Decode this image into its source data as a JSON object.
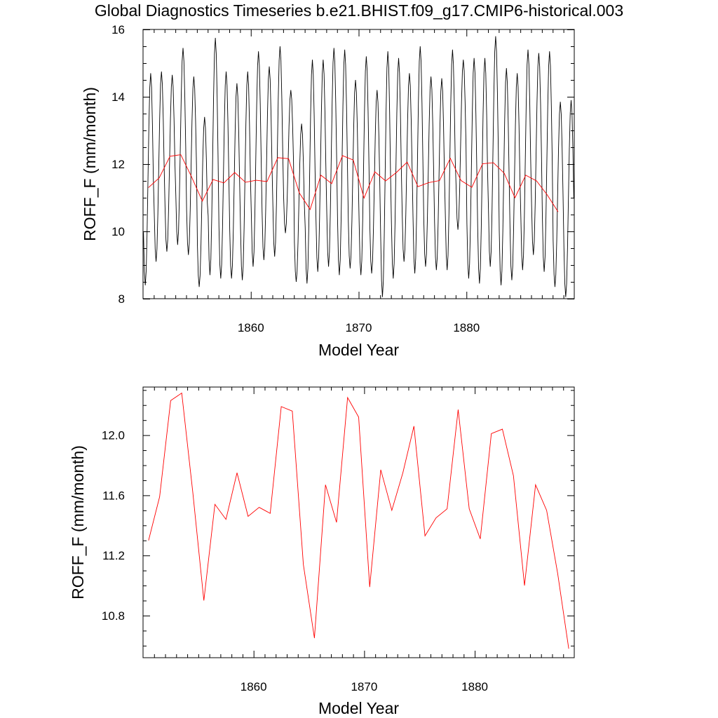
{
  "page_title": "Global Diagnostics Timeseries b.e21.BHIST.f09_g17.CMIP6-historical.003",
  "colors": {
    "monthly": "#000000",
    "annual": "#ff0000",
    "axis": "#000000"
  },
  "chart_data": [
    {
      "type": "line",
      "ylabel": "ROFF_F (mm/month)",
      "xlabel": "Model Year",
      "xlim": [
        1850,
        1890
      ],
      "ylim": [
        8,
        16
      ],
      "xticks": [
        1860,
        1870,
        1880
      ],
      "xtick_labels": [
        "1860",
        "1870",
        "1880"
      ],
      "yticks": [
        8,
        10,
        12,
        14,
        16
      ],
      "ytick_labels": [
        "8",
        "10",
        "12",
        "14",
        "16"
      ],
      "series": [
        {
          "name": "monthly",
          "color": "#000000",
          "seasonal": {
            "start_year": 1850,
            "n_months": 480,
            "min_month": 2,
            "max_month": 8
          },
          "annual_max": [
            14.7,
            14.75,
            14.65,
            15.45,
            14.6,
            13.4,
            15.75,
            14.75,
            14.4,
            14.75,
            15.35,
            14.9,
            15.5,
            14.2,
            13.2,
            15.1,
            15.1,
            15.45,
            15.4,
            14.5,
            15.2,
            14.2,
            15.35,
            15.15,
            14.7,
            15.5,
            14.6,
            14.55,
            15.4,
            15.1,
            15.15,
            15.15,
            15.8,
            14.85,
            14.7,
            15.4,
            15.3,
            15.35,
            13.85,
            13.9
          ],
          "annual_min": [
            8.4,
            9.1,
            9.4,
            9.6,
            9.3,
            8.35,
            8.7,
            8.6,
            8.6,
            8.55,
            8.95,
            9.15,
            9.25,
            9.95,
            8.5,
            8.45,
            8.8,
            8.95,
            8.7,
            8.9,
            8.7,
            8.75,
            8.05,
            8.6,
            9.1,
            8.75,
            8.95,
            8.85,
            8.85,
            10.05,
            8.6,
            8.45,
            8.95,
            8.4,
            8.55,
            8.85,
            9.3,
            8.8,
            8.35,
            8.05
          ]
        },
        {
          "name": "annual mean",
          "color": "#ff0000",
          "x": [
            1850.5,
            1851.5,
            1852.5,
            1853.5,
            1854.5,
            1855.5,
            1856.5,
            1857.5,
            1858.5,
            1859.5,
            1860.5,
            1861.5,
            1862.5,
            1863.5,
            1864.5,
            1865.5,
            1866.5,
            1867.5,
            1868.5,
            1869.5,
            1870.5,
            1871.5,
            1872.5,
            1873.5,
            1874.5,
            1875.5,
            1876.5,
            1877.5,
            1878.5,
            1879.5,
            1880.5,
            1881.5,
            1882.5,
            1883.5,
            1884.5,
            1885.5,
            1886.5,
            1887.5,
            1888.5
          ],
          "values": [
            11.3,
            11.59,
            12.23,
            12.28,
            11.62,
            10.9,
            11.54,
            11.44,
            11.75,
            11.46,
            11.52,
            11.48,
            12.19,
            12.16,
            11.14,
            10.65,
            11.67,
            11.42,
            12.25,
            12.12,
            10.99,
            11.77,
            11.5,
            11.75,
            12.06,
            11.33,
            11.45,
            11.51,
            12.17,
            11.51,
            11.31,
            12.01,
            12.04,
            11.73,
            11.0,
            11.67,
            11.5,
            11.08,
            10.58
          ]
        }
      ]
    },
    {
      "type": "line",
      "ylabel": "ROFF_F (mm/month)",
      "xlabel": "Model Year",
      "xlim": [
        1850,
        1889
      ],
      "ylim": [
        10.52,
        12.32
      ],
      "xticks": [
        1860,
        1870,
        1880
      ],
      "xtick_labels": [
        "1860",
        "1870",
        "1880"
      ],
      "yticks": [
        10.8,
        11.2,
        11.6,
        12.0
      ],
      "ytick_labels": [
        "10.8",
        "11.2",
        "11.6",
        "12.0"
      ],
      "series": [
        {
          "name": "annual mean",
          "color": "#ff0000",
          "x": [
            1850.5,
            1851.5,
            1852.5,
            1853.5,
            1854.5,
            1855.5,
            1856.5,
            1857.5,
            1858.5,
            1859.5,
            1860.5,
            1861.5,
            1862.5,
            1863.5,
            1864.5,
            1865.5,
            1866.5,
            1867.5,
            1868.5,
            1869.5,
            1870.5,
            1871.5,
            1872.5,
            1873.5,
            1874.5,
            1875.5,
            1876.5,
            1877.5,
            1878.5,
            1879.5,
            1880.5,
            1881.5,
            1882.5,
            1883.5,
            1884.5,
            1885.5,
            1886.5,
            1887.5,
            1888.5
          ],
          "values": [
            11.3,
            11.59,
            12.23,
            12.28,
            11.62,
            10.9,
            11.54,
            11.44,
            11.75,
            11.46,
            11.52,
            11.48,
            12.19,
            12.16,
            11.14,
            10.65,
            11.67,
            11.42,
            12.25,
            12.12,
            10.99,
            11.77,
            11.5,
            11.75,
            12.06,
            11.33,
            11.45,
            11.51,
            12.17,
            11.51,
            11.31,
            12.01,
            12.04,
            11.73,
            11.0,
            11.67,
            11.5,
            11.08,
            10.58
          ]
        }
      ]
    }
  ]
}
